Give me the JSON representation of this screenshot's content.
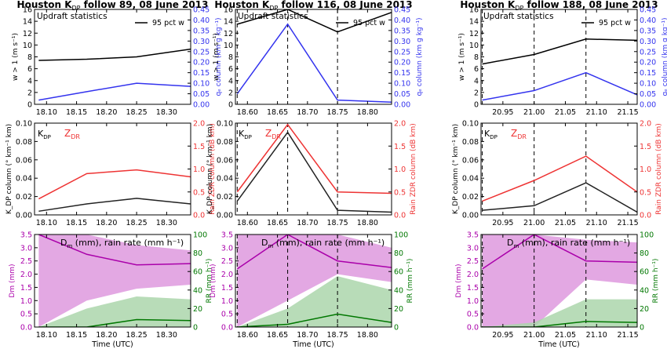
{
  "figure": {
    "colors": {
      "black": "#000000",
      "updraft_q": "#3333ee",
      "kdp": "#222222",
      "zdr": "#ee3333",
      "dm": "#aa00aa",
      "dm_fill": "#e3a8e3",
      "rr": "#007700",
      "rr_fill": "#acd6ac",
      "overlap_fill": "#777777"
    }
  },
  "chart_data": [
    {
      "id": "p89",
      "title": "Houston K",
      "title_sub": "DP",
      "title_rest": " follow 89, 08 June 2013",
      "xlim": [
        18.08,
        18.34
      ],
      "xticks": [
        "18.10",
        "18.15",
        "18.20",
        "18.25",
        "18.30"
      ],
      "xlabel": "Time (UTC)",
      "times": [
        18.087,
        18.167,
        18.25,
        18.34
      ],
      "dashed_times": [],
      "updraft": {
        "type": "line",
        "title": "Updraft statistics",
        "legend": "95 pct w",
        "ylabel_left": "w > 1 (m s⁻¹)",
        "ylabel_right": "qₑ column (km g kg⁻¹)",
        "ylim_left": [
          0,
          16
        ],
        "ylim_right": [
          0,
          0.45
        ],
        "yticks_left": [
          "0",
          "2",
          "4",
          "6",
          "8",
          "10",
          "12",
          "14",
          "16"
        ],
        "yticks_right": [
          "0.00",
          "0.05",
          "0.10",
          "0.15",
          "0.20",
          "0.25",
          "0.30",
          "0.35",
          "0.40",
          "0.45"
        ],
        "w95": [
          7.4,
          7.6,
          8.0,
          9.3
        ],
        "qcol": [
          0.02,
          0.06,
          0.1,
          0.085
        ]
      },
      "kdp": {
        "type": "line",
        "label": "K",
        "label_sub": "DP",
        "zdr_label": "Z",
        "zdr_sub": "DR",
        "ylabel_left": "K_DP column (° km⁻¹ km)",
        "ylabel_right": "Rain ZDR column (dB km)",
        "ylim_left": [
          0,
          0.1
        ],
        "ylim_right": [
          0,
          2.0
        ],
        "yticks_left": [
          "0.00",
          "0.02",
          "0.04",
          "0.06",
          "0.08",
          "0.10"
        ],
        "yticks_right": [
          "0.0",
          "0.5",
          "1.0",
          "1.5",
          "2.0"
        ],
        "kdp_values": [
          0.004,
          0.012,
          0.018,
          0.012
        ],
        "zdr_values": [
          0.35,
          0.9,
          0.98,
          0.83
        ]
      },
      "dm": {
        "type": "area",
        "title": "D",
        "title_sub": "m",
        "title_rest": " (mm), rain rate (mm h⁻¹)",
        "ylabel_left": "Dm (mm)",
        "ylabel_right": "RR (mm h⁻¹)",
        "ylim_left": [
          0,
          3.5
        ],
        "ylim_right": [
          0,
          100
        ],
        "yticks_left": [
          "0.0",
          "0.5",
          "1.0",
          "1.5",
          "2.0",
          "2.5",
          "3.0",
          "3.5"
        ],
        "yticks_right": [
          "0",
          "20",
          "40",
          "60",
          "80",
          "100"
        ],
        "dm_median": [
          3.5,
          2.75,
          2.35,
          2.4
        ],
        "dm_low": [
          0.0,
          1.0,
          1.45,
          1.6
        ],
        "dm_high": [
          3.5,
          3.5,
          3.1,
          2.9
        ],
        "rr_median": [
          0,
          0,
          8,
          7
        ],
        "rr_low": [
          0,
          0,
          0,
          0
        ],
        "rr_high": [
          0,
          20,
          33,
          30
        ]
      }
    },
    {
      "id": "p116",
      "title": "Houston K",
      "title_sub": "DP",
      "title_rest": " follow 116, 08 June 2013",
      "xlim": [
        18.58,
        18.84
      ],
      "xticks": [
        "18.60",
        "18.65",
        "18.70",
        "18.75",
        "18.80"
      ],
      "xlabel": "Time (UTC)",
      "times": [
        18.583,
        18.667,
        18.75,
        18.84
      ],
      "dashed_times": [
        18.583,
        18.667,
        18.75
      ],
      "updraft": {
        "type": "line",
        "title": "Updraft statistics",
        "legend": "95 pct w",
        "ylabel_left": "w > 1 (m s⁻¹)",
        "ylabel_right": "qₑ column (km g kg⁻¹)",
        "ylim_left": [
          0,
          16
        ],
        "ylim_right": [
          0,
          0.45
        ],
        "yticks_left": [
          "0",
          "2",
          "4",
          "6",
          "8",
          "10",
          "12",
          "14",
          "16"
        ],
        "yticks_right": [
          "0.00",
          "0.05",
          "0.10",
          "0.15",
          "0.20",
          "0.25",
          "0.30",
          "0.35",
          "0.40",
          "0.45"
        ],
        "w95": [
          13.5,
          16.0,
          12.2,
          15.5
        ],
        "qcol": [
          0.05,
          0.38,
          0.02,
          0.01
        ]
      },
      "kdp": {
        "type": "line",
        "label": "K",
        "label_sub": "DP",
        "zdr_label": "Z",
        "zdr_sub": "DR",
        "ylabel_left": "K_DP column (° km⁻¹ km)",
        "ylabel_right": "Rain ZDR column (dB km)",
        "ylim_left": [
          0,
          0.1
        ],
        "ylim_right": [
          0,
          2.0
        ],
        "yticks_left": [
          "0.00",
          "0.02",
          "0.04",
          "0.06",
          "0.08",
          "0.10"
        ],
        "yticks_right": [
          "0.0",
          "0.5",
          "1.0",
          "1.5",
          "2.0"
        ],
        "kdp_values": [
          0.015,
          0.09,
          0.005,
          0.003
        ],
        "zdr_values": [
          0.5,
          1.97,
          0.5,
          0.47
        ]
      },
      "dm": {
        "type": "area",
        "title": "D",
        "title_sub": "m",
        "title_rest": " (mm), rain rate (mm h⁻¹)",
        "ylabel_left": "Dm (mm)",
        "ylabel_right": "RR (mm h⁻¹)",
        "ylim_left": [
          0,
          3.5
        ],
        "ylim_right": [
          0,
          100
        ],
        "yticks_left": [
          "0.0",
          "0.5",
          "1.0",
          "1.5",
          "2.0",
          "2.5",
          "3.0",
          "3.5"
        ],
        "yticks_right": [
          "0",
          "20",
          "40",
          "60",
          "80",
          "100"
        ],
        "dm_median": [
          2.2,
          3.5,
          2.5,
          2.25
        ],
        "dm_low": [
          0.0,
          1.0,
          2.0,
          1.7
        ],
        "dm_high": [
          3.5,
          3.5,
          3.5,
          3.0
        ],
        "rr_median": [
          0,
          3,
          14,
          5
        ],
        "rr_low": [
          0,
          0,
          0,
          0
        ],
        "rr_high": [
          0,
          20,
          55,
          40
        ]
      }
    },
    {
      "id": "p188",
      "title": "Houston K",
      "title_sub": "DP",
      "title_rest": " follow 188, 08 June 2013",
      "xlim": [
        20.915,
        21.165
      ],
      "xticks": [
        "20.95",
        "21.00",
        "21.05",
        "21.10",
        "21.15"
      ],
      "xlabel": "Time (UTC)",
      "times": [
        20.917,
        21.0,
        21.083,
        21.165
      ],
      "dashed_times": [
        20.917,
        21.0,
        21.083
      ],
      "updraft": {
        "type": "line",
        "title": "Updraft statistics",
        "legend": "95 pct w",
        "ylabel_left": "w > 1 (m s⁻¹)",
        "ylabel_right": "qₑ column (km g kg⁻¹)",
        "ylim_left": [
          0,
          16
        ],
        "ylim_right": [
          0,
          0.45
        ],
        "yticks_left": [
          "0",
          "2",
          "4",
          "6",
          "8",
          "10",
          "12",
          "14",
          "16"
        ],
        "yticks_right": [
          "0.00",
          "0.05",
          "0.10",
          "0.15",
          "0.20",
          "0.25",
          "0.30",
          "0.35",
          "0.40",
          "0.45"
        ],
        "w95": [
          6.8,
          8.4,
          11.0,
          10.8
        ],
        "qcol": [
          0.02,
          0.065,
          0.15,
          0.045
        ]
      },
      "kdp": {
        "type": "line",
        "label": "K",
        "label_sub": "DP",
        "zdr_label": "Z",
        "zdr_sub": "DR",
        "ylabel_left": "K_DP column (° km⁻¹ km)",
        "ylabel_right": "Rain ZDR column (dB km)",
        "ylim_left": [
          0,
          0.1
        ],
        "ylim_right": [
          0,
          2.0
        ],
        "yticks_left": [
          "0.00",
          "0.02",
          "0.04",
          "0.06",
          "0.08",
          "0.10"
        ],
        "yticks_right": [
          "0.0",
          "0.5",
          "1.0",
          "1.5",
          "2.0"
        ],
        "kdp_values": [
          0.005,
          0.01,
          0.035,
          0.003
        ],
        "zdr_values": [
          0.3,
          0.75,
          1.28,
          0.5
        ]
      },
      "dm": {
        "type": "area",
        "title": "D",
        "title_sub": "m",
        "title_rest": " (mm), rain rate (mm h⁻¹)",
        "ylabel_left": "Dm (mm)",
        "ylabel_right": "RR (mm h⁻¹)",
        "ylim_left": [
          0,
          3.5
        ],
        "ylim_right": [
          0,
          100
        ],
        "yticks_left": [
          "0.0",
          "0.5",
          "1.0",
          "1.5",
          "2.0",
          "2.5",
          "3.0",
          "3.5"
        ],
        "yticks_right": [
          "0",
          "20",
          "40",
          "60",
          "80",
          "100"
        ],
        "dm_median": [
          2.2,
          3.5,
          2.5,
          2.45
        ],
        "dm_low": [
          0.0,
          0.0,
          1.8,
          1.6
        ],
        "dm_high": [
          3.5,
          3.5,
          3.3,
          3.2
        ],
        "rr_median": [
          0,
          0,
          6,
          5
        ],
        "rr_low": [
          0,
          0,
          0,
          0
        ],
        "rr_high": [
          0,
          5,
          30,
          30
        ]
      }
    }
  ]
}
